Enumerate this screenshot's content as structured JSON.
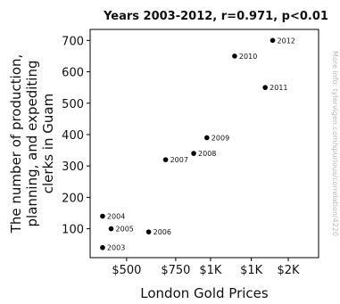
{
  "chart_data": {
    "type": "scatter",
    "title": "Years 2003-2012, r=0.971, p<0.01",
    "xlabel": "London Gold Prices",
    "ylabel": "The number of production, planning, and expediting clerks in Guam",
    "side_note": "More info: tylervigen.com/spurious/correlation/4220",
    "x_scale": "log",
    "xlim": [
      370,
      2440
    ],
    "ylim": [
      8,
      735
    ],
    "x_ticks": [
      {
        "value": 500,
        "label": "$500"
      },
      {
        "value": 750,
        "label": "$750"
      },
      {
        "value": 1000,
        "label": "$1K"
      },
      {
        "value": 1400,
        "label": "$1K"
      },
      {
        "value": 1900,
        "label": "$2K"
      }
    ],
    "y_ticks": [
      100,
      200,
      300,
      400,
      500,
      600,
      700
    ],
    "grid": false,
    "points": [
      {
        "label": "2003",
        "x": 410,
        "y": 40
      },
      {
        "label": "2004",
        "x": 410,
        "y": 140
      },
      {
        "label": "2005",
        "x": 440,
        "y": 100
      },
      {
        "label": "2006",
        "x": 600,
        "y": 90
      },
      {
        "label": "2007",
        "x": 690,
        "y": 320
      },
      {
        "label": "2008",
        "x": 870,
        "y": 340
      },
      {
        "label": "2009",
        "x": 970,
        "y": 390
      },
      {
        "label": "2010",
        "x": 1220,
        "y": 650
      },
      {
        "label": "2011",
        "x": 1570,
        "y": 550
      },
      {
        "label": "2012",
        "x": 1670,
        "y": 700
      }
    ],
    "point_color": "#000000"
  }
}
